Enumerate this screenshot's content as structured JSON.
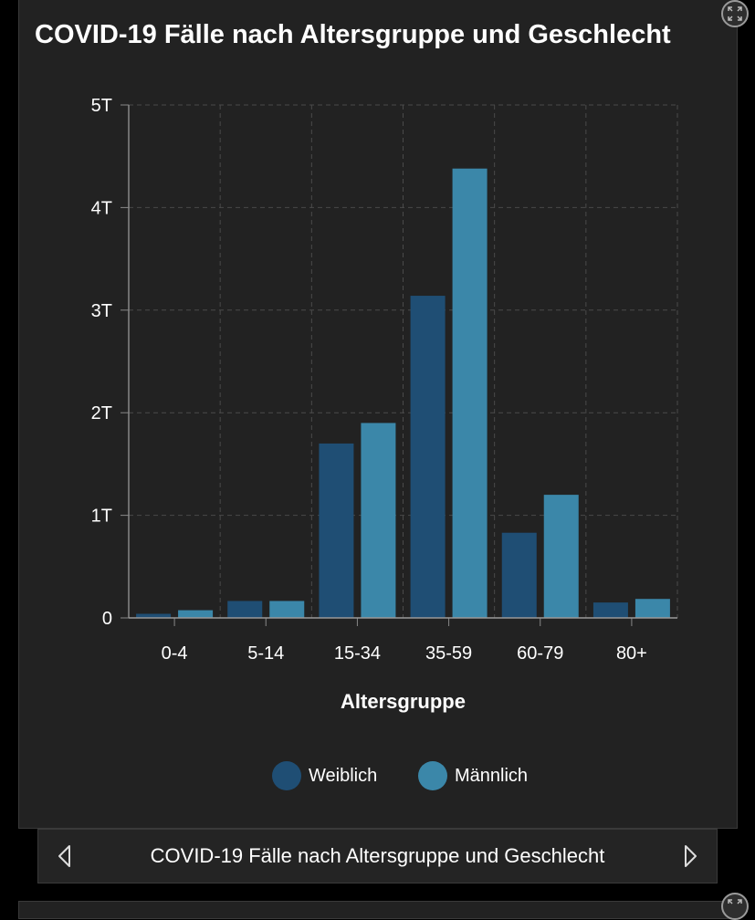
{
  "panel": {
    "title": "COVID-19 Fälle nach Altersgruppe und Geschlecht"
  },
  "icons": {
    "expand": "expand-arrows-icon",
    "prev": "chevron-left-icon",
    "next": "chevron-right-icon"
  },
  "navigation": {
    "label": "COVID-19 Fälle nach Altersgruppe und Geschlecht"
  },
  "colors": {
    "weiblich": "#1f4e74",
    "maennlich": "#3b87a9",
    "background": "#222222",
    "grid": "#4a4a4a"
  },
  "chart_data": {
    "type": "bar",
    "title": "COVID-19 Fälle nach Altersgruppe und Geschlecht",
    "xlabel": "Altersgruppe",
    "ylabel": "",
    "categories": [
      "0-4",
      "5-14",
      "15-34",
      "35-59",
      "60-79",
      "80+"
    ],
    "series": [
      {
        "name": "Weiblich",
        "values": [
          40,
          165,
          1700,
          3140,
          830,
          150
        ]
      },
      {
        "name": "Männlich",
        "values": [
          75,
          165,
          1900,
          4380,
          1200,
          185
        ]
      }
    ],
    "ylim": [
      0,
      5000
    ],
    "yticks": [
      0,
      1000,
      2000,
      3000,
      4000,
      5000
    ],
    "ytick_labels": [
      "0",
      "1T",
      "2T",
      "3T",
      "4T",
      "5T"
    ],
    "grid": true,
    "legend_position": "bottom"
  }
}
